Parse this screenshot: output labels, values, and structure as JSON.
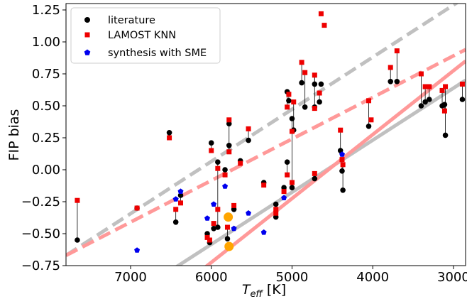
{
  "chart_data": {
    "type": "scatter",
    "xlabel_main": "T",
    "xlabel_sub": "eff",
    "xlabel_unit": " [K]",
    "ylabel": "FIP bias",
    "xlim": [
      7800,
      2850
    ],
    "ylim": [
      -0.75,
      1.3
    ],
    "x_reversed": true,
    "x_ticks": [
      7000,
      6000,
      5000,
      4000,
      3000
    ],
    "y_ticks": [
      -0.75,
      -0.5,
      -0.25,
      0.0,
      0.25,
      0.5,
      0.75,
      1.0,
      1.25
    ],
    "x_tick_labels": [
      "7000",
      "6000",
      "5000",
      "4000",
      "3000"
    ],
    "y_tick_labels": [
      "−0.75",
      "−0.50",
      "−0.25",
      "0.00",
      "0.25",
      "0.50",
      "0.75",
      "1.00",
      "1.25"
    ],
    "legend_placement": "upper-left",
    "legend": [
      {
        "label": "literature",
        "marker": "circle",
        "color": "#000000"
      },
      {
        "label": "LAMOST KNN",
        "marker": "square",
        "color": "#ee0000"
      },
      {
        "label": "synthesis with SME",
        "marker": "pentagon",
        "color": "#0000ee"
      }
    ],
    "fit_lines": [
      {
        "color": "#c0c0c0",
        "dash": "dashed",
        "points": [
          [
            7800,
            -0.67
          ],
          [
            2850,
            1.35
          ]
        ]
      },
      {
        "color": "#ff9999",
        "dash": "dashed",
        "points": [
          [
            7800,
            -0.67
          ],
          [
            2850,
            0.94
          ]
        ]
      },
      {
        "color": "#c0c0c0",
        "dash": "solid",
        "points": [
          [
            6900,
            -0.95
          ],
          [
            2850,
            0.7
          ]
        ]
      },
      {
        "color": "#ff9999",
        "dash": "solid",
        "points": [
          [
            6450,
            -0.95
          ],
          [
            2850,
            0.85
          ]
        ]
      }
    ],
    "highlight_points": {
      "color": "#ffa500",
      "points": [
        [
          5790,
          -0.37
        ],
        [
          5780,
          -0.6
        ]
      ]
    },
    "series": [
      {
        "name": "literature",
        "marker": "circle",
        "color": "#000000",
        "points": [
          [
            7660,
            -0.55
          ],
          [
            6920,
            -0.3
          ],
          [
            6520,
            0.29
          ],
          [
            6440,
            -0.41
          ],
          [
            6380,
            -0.2
          ],
          [
            6050,
            -0.5
          ],
          [
            6020,
            -0.57
          ],
          [
            6000,
            0.21
          ],
          [
            5970,
            -0.46
          ],
          [
            5920,
            -0.45
          ],
          [
            5920,
            0.06
          ],
          [
            5830,
            0.0
          ],
          [
            5800,
            -0.54
          ],
          [
            5780,
            0.19
          ],
          [
            5780,
            0.36
          ],
          [
            5720,
            -0.31
          ],
          [
            5640,
            0.07
          ],
          [
            5540,
            0.23
          ],
          [
            5350,
            -0.1
          ],
          [
            5200,
            -0.27
          ],
          [
            5200,
            -0.37
          ],
          [
            5100,
            -0.14
          ],
          [
            5060,
            0.06
          ],
          [
            5060,
            0.61
          ],
          [
            5040,
            0.54
          ],
          [
            5000,
            0.4
          ],
          [
            5000,
            -0.14
          ],
          [
            4980,
            0.31
          ],
          [
            4880,
            0.68
          ],
          [
            4840,
            0.49
          ],
          [
            4720,
            0.67
          ],
          [
            4720,
            -0.07
          ],
          [
            4720,
            0.49
          ],
          [
            4660,
            0.53
          ],
          [
            4640,
            0.67
          ],
          [
            4400,
            0.15
          ],
          [
            4380,
            -0.01
          ],
          [
            4370,
            -0.16
          ],
          [
            4050,
            0.34
          ],
          [
            3780,
            0.69
          ],
          [
            3700,
            0.69
          ],
          [
            3400,
            0.5
          ],
          [
            3350,
            0.53
          ],
          [
            3300,
            0.55
          ],
          [
            3140,
            0.5
          ],
          [
            3110,
            0.51
          ],
          [
            3100,
            0.27
          ],
          [
            2890,
            0.55
          ]
        ]
      },
      {
        "name": "LAMOST KNN",
        "marker": "square",
        "color": "#ee0000",
        "points": [
          [
            7660,
            -0.24
          ],
          [
            6920,
            -0.3
          ],
          [
            6520,
            0.25
          ],
          [
            6440,
            -0.31
          ],
          [
            6380,
            -0.26
          ],
          [
            6050,
            -0.53
          ],
          [
            6020,
            -0.55
          ],
          [
            6000,
            0.15
          ],
          [
            5970,
            -0.42
          ],
          [
            5920,
            -0.31
          ],
          [
            5920,
            0.01
          ],
          [
            5830,
            -0.04
          ],
          [
            5800,
            -0.45
          ],
          [
            5780,
            0.14
          ],
          [
            5780,
            0.39
          ],
          [
            5720,
            -0.28
          ],
          [
            5640,
            0.05
          ],
          [
            5540,
            0.32
          ],
          [
            5350,
            -0.12
          ],
          [
            5200,
            -0.31
          ],
          [
            5200,
            -0.34
          ],
          [
            5100,
            -0.17
          ],
          [
            5060,
            -0.04
          ],
          [
            5060,
            0.49
          ],
          [
            5040,
            0.59
          ],
          [
            5000,
            0.3
          ],
          [
            5000,
            -0.1
          ],
          [
            4980,
            0.53
          ],
          [
            4880,
            0.84
          ],
          [
            4840,
            0.76
          ],
          [
            4720,
            0.74
          ],
          [
            4720,
            -0.03
          ],
          [
            4720,
            0.48
          ],
          [
            4660,
            0.6
          ],
          [
            4640,
            1.22
          ],
          [
            4600,
            1.13
          ],
          [
            4400,
            0.31
          ],
          [
            4380,
            0.08
          ],
          [
            4370,
            0.04
          ],
          [
            4050,
            0.54
          ],
          [
            4020,
            0.39
          ],
          [
            3780,
            0.8
          ],
          [
            3700,
            0.93
          ],
          [
            3400,
            0.75
          ],
          [
            3350,
            0.65
          ],
          [
            3300,
            0.65
          ],
          [
            3140,
            0.62
          ],
          [
            3110,
            0.46
          ],
          [
            3100,
            0.65
          ],
          [
            2890,
            0.67
          ]
        ]
      },
      {
        "name": "synthesis with SME",
        "marker": "pentagon",
        "color": "#0000ee",
        "points": [
          [
            6920,
            -0.63
          ],
          [
            6440,
            -0.23
          ],
          [
            6380,
            -0.17
          ],
          [
            6050,
            -0.38
          ],
          [
            5970,
            -0.27
          ],
          [
            5830,
            -0.13
          ],
          [
            5720,
            -0.46
          ],
          [
            5540,
            -0.34
          ],
          [
            5350,
            -0.49
          ],
          [
            5100,
            -0.22
          ],
          [
            4380,
            0.12
          ]
        ]
      }
    ]
  }
}
